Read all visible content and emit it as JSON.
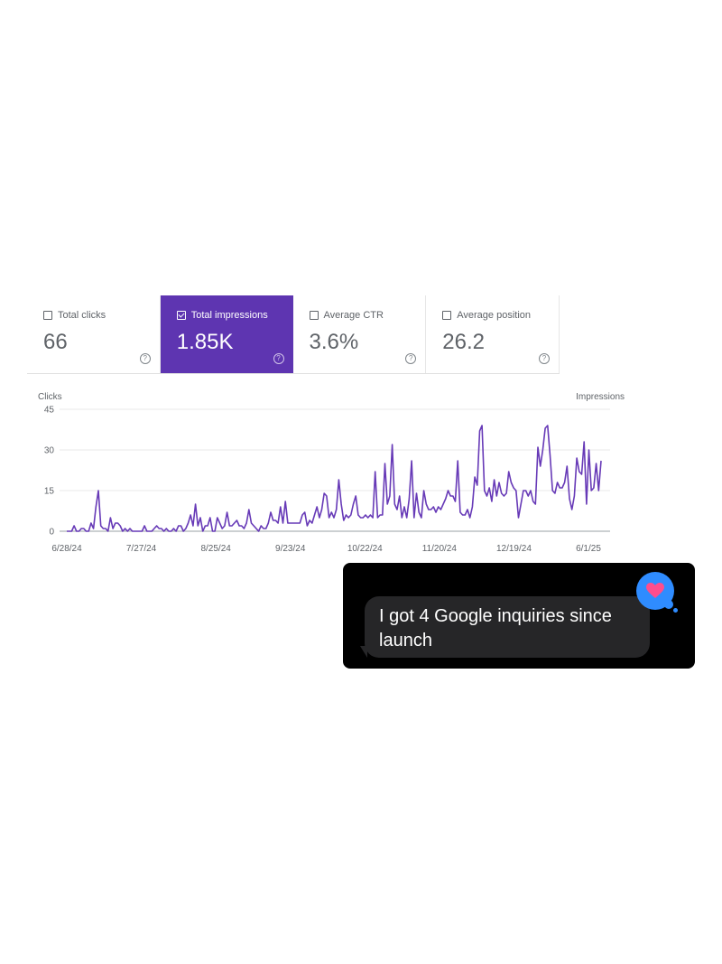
{
  "metrics": [
    {
      "label": "Total clicks",
      "value": "66",
      "checked": false
    },
    {
      "label": "Total impressions",
      "value": "1.85K",
      "checked": true
    },
    {
      "label": "Average CTR",
      "value": "3.6%",
      "checked": false
    },
    {
      "label": "Average position",
      "value": "26.2",
      "checked": false
    }
  ],
  "colors": {
    "accent": "#5e35b1",
    "line": "#673ab7",
    "reaction": "#2f8cff",
    "heart": "#ff4d8d"
  },
  "chart_data": {
    "type": "line",
    "ylabel": "Clicks",
    "y2label": "Impressions",
    "ylim": [
      0,
      45
    ],
    "yticks": [
      "0",
      "15",
      "30",
      "45"
    ],
    "ytick_values": [
      0,
      15,
      30,
      45
    ],
    "xticks": [
      "6/28/24",
      "7/27/24",
      "8/25/24",
      "9/23/24",
      "10/22/24",
      "11/20/24",
      "12/19/24",
      "6/1/25"
    ],
    "grid": true,
    "series": [
      {
        "values": [
          0,
          0,
          0,
          2,
          0,
          0,
          1,
          1,
          0,
          0,
          3,
          1,
          9,
          15,
          2,
          1,
          1,
          0,
          5,
          1,
          3,
          3,
          2,
          0,
          1,
          0,
          1,
          0,
          0,
          0,
          0,
          0,
          2,
          0,
          0,
          0,
          1,
          2,
          1,
          1,
          0,
          1,
          0,
          0,
          1,
          0,
          2,
          2,
          0,
          1,
          3,
          6,
          2,
          10,
          2,
          5,
          0,
          2,
          2,
          5,
          0,
          0,
          5,
          3,
          1,
          2,
          7,
          2,
          2,
          3,
          4,
          2,
          2,
          1,
          3,
          8,
          3,
          2,
          1,
          0,
          2,
          1,
          1,
          3,
          7,
          4,
          4,
          3,
          9,
          3,
          11,
          3,
          3,
          3,
          3,
          3,
          3,
          6,
          7,
          2,
          4,
          3,
          6,
          9,
          5,
          8,
          14,
          13,
          5,
          7,
          5,
          8,
          19,
          10,
          4,
          6,
          5,
          6,
          10,
          13,
          6,
          5,
          5,
          6,
          5,
          6,
          5,
          22,
          5,
          6,
          6,
          25,
          10,
          13,
          32,
          10,
          8,
          13,
          5,
          9,
          5,
          12,
          26,
          5,
          14,
          7,
          5,
          15,
          10,
          8,
          8,
          9,
          7,
          9,
          8,
          10,
          12,
          15,
          13,
          13,
          11,
          26,
          7,
          6,
          6,
          8,
          5,
          9,
          20,
          17,
          37,
          39,
          15,
          13,
          16,
          11,
          19,
          13,
          18,
          14,
          13,
          14,
          22,
          18,
          16,
          15,
          5,
          10,
          15,
          15,
          13,
          15,
          11,
          10,
          31,
          24,
          30,
          38,
          39,
          28,
          15,
          14,
          18,
          16,
          16,
          18,
          24,
          12,
          8,
          13,
          27,
          22,
          21,
          33,
          10,
          30,
          15,
          16,
          25,
          15,
          26
        ]
      }
    ]
  },
  "message": {
    "text": "I got 4 Google inquiries since launch"
  }
}
